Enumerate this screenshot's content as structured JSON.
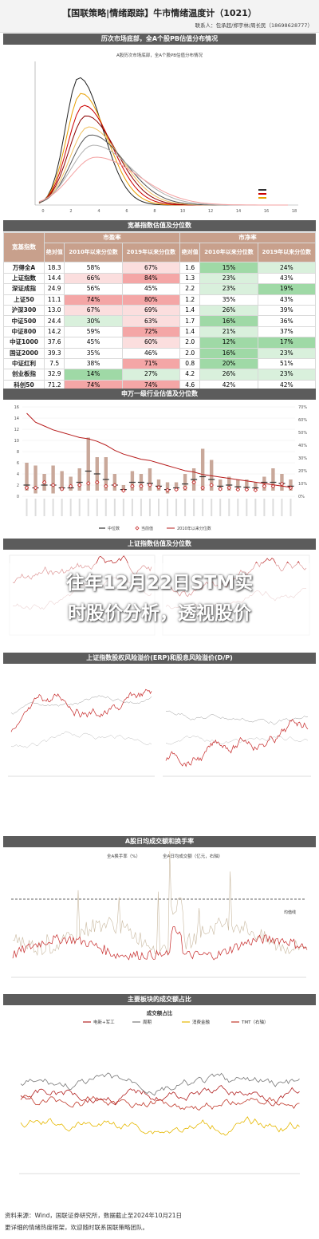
{
  "header": {
    "title": "【国联策略|情绪跟踪】牛市情绪温度计（1021）",
    "contact": "联系人：包承超/郑宇林/周长民（18698628777）"
  },
  "sections": {
    "pb": "历次市场底部，全A个股PB估值分布情况",
    "valuation_table": "宽基指数估值及分位数",
    "sw_industry": "申万一级行业估值及分位数",
    "sh_valuation": "上证指数估值及分位数",
    "erp": "上证指数股权风险溢价(ERP)和股息风险溢价(D/P)",
    "turnover": "A股日均成交额和换手率",
    "sector_share": "主要板块的成交额占比"
  },
  "pb_chart": {
    "subtitle": "A股历次市场底部，全A个股PB估值分布情况",
    "ticks": [
      "0",
      "2",
      "4",
      "6",
      "8",
      "10",
      "12",
      "14",
      "16",
      "18"
    ]
  },
  "table": {
    "corner": "宽基指数",
    "pe_group": "市盈率",
    "pb_group": "市净率",
    "sub_abs": "绝对值",
    "sub_2010": "2010年以来分位数",
    "sub_2019": "2019年以来分位数",
    "rows": [
      {
        "name": "万得全A",
        "pe": "18.3",
        "pe10": "58%",
        "pe19": "67%",
        "pb": "1.6",
        "pb10": "15%",
        "pb19": "24%"
      },
      {
        "name": "上证指数",
        "pe": "14.4",
        "pe10": "66%",
        "pe19": "84%",
        "pb": "1.3",
        "pb10": "23%",
        "pb19": "43%"
      },
      {
        "name": "深证成指",
        "pe": "24.9",
        "pe10": "56%",
        "pe19": "45%",
        "pb": "2.2",
        "pb10": "23%",
        "pb19": "19%"
      },
      {
        "name": "上证50",
        "pe": "11.1",
        "pe10": "74%",
        "pe19": "80%",
        "pb": "1.2",
        "pb10": "35%",
        "pb19": "43%"
      },
      {
        "name": "沪深300",
        "pe": "13.0",
        "pe10": "67%",
        "pe19": "69%",
        "pb": "1.4",
        "pb10": "26%",
        "pb19": "39%"
      },
      {
        "name": "中证500",
        "pe": "24.4",
        "pe10": "30%",
        "pe19": "63%",
        "pb": "1.7",
        "pb10": "16%",
        "pb19": "36%"
      },
      {
        "name": "中证800",
        "pe": "14.2",
        "pe10": "59%",
        "pe19": "72%",
        "pb": "1.4",
        "pb10": "21%",
        "pb19": "37%"
      },
      {
        "name": "中证1000",
        "pe": "37.6",
        "pe10": "45%",
        "pe19": "60%",
        "pb": "2.0",
        "pb10": "12%",
        "pb19": "17%"
      },
      {
        "name": "国证2000",
        "pe": "39.3",
        "pe10": "35%",
        "pe19": "46%",
        "pb": "2.0",
        "pb10": "16%",
        "pb19": "23%"
      },
      {
        "name": "中证红利",
        "pe": "7.5",
        "pe10": "38%",
        "pe19": "71%",
        "pb": "0.8",
        "pb10": "20%",
        "pb19": "51%"
      },
      {
        "name": "创业板指",
        "pe": "32.9",
        "pe10": "14%",
        "pe19": "27%",
        "pb": "4.2",
        "pb10": "26%",
        "pb19": "23%"
      },
      {
        "name": "科创50",
        "pe": "71.2",
        "pe10": "74%",
        "pe19": "74%",
        "pb": "4.6",
        "pb10": "42%",
        "pb19": "42%"
      }
    ]
  },
  "sw_chart": {
    "left_ticks": [
      "0",
      "2",
      "4",
      "6",
      "8",
      "10",
      "12",
      "14",
      "16"
    ],
    "right_ticks": [
      "0%",
      "10%",
      "20%",
      "30%",
      "40%",
      "50%",
      "60%",
      "70%"
    ],
    "bar_ranges": [
      [
        1,
        6
      ],
      [
        0.5,
        5.5
      ],
      [
        1,
        4
      ],
      [
        0.5,
        5.5
      ],
      [
        1,
        4.5
      ],
      [
        1,
        3.5
      ],
      [
        1,
        5
      ],
      [
        1,
        10.5
      ],
      [
        1,
        7
      ],
      [
        1,
        7
      ],
      [
        1,
        4
      ],
      [
        1,
        2
      ],
      [
        1,
        4.5
      ],
      [
        1,
        4
      ],
      [
        1,
        5
      ],
      [
        1,
        3
      ],
      [
        0.5,
        2.5
      ],
      [
        1,
        2.5
      ],
      [
        1,
        4
      ],
      [
        1,
        5
      ],
      [
        1,
        8.5
      ],
      [
        1,
        6.5
      ],
      [
        1,
        3
      ],
      [
        1,
        3.5
      ],
      [
        1,
        3
      ],
      [
        1,
        3
      ],
      [
        1,
        2.5
      ],
      [
        1,
        3.5
      ],
      [
        1,
        5
      ],
      [
        1,
        4
      ],
      [
        1,
        3
      ]
    ],
    "medians": [
      2,
      1.5,
      2,
      2,
      1.5,
      1.5,
      2.5,
      4.5,
      4,
      3,
      2,
      1.2,
      2.5,
      2.5,
      2.3,
      1.8,
      1.2,
      1.5,
      2.2,
      3,
      3.5,
      3,
      1.8,
      2,
      1.7,
      1.6,
      1.5,
      2.5,
      2.5,
      2.3,
      1.8
    ],
    "currents": [
      1.5,
      1.5,
      2.5,
      2,
      1.3,
      1.8,
      2,
      2.3,
      2.5,
      1.8,
      2,
      1,
      1.8,
      1.8,
      2,
      1.6,
      1.1,
      1.2,
      1.5,
      2.5,
      1.5,
      2,
      1.3,
      1.5,
      1.2,
      1.2,
      1.1,
      1.8,
      1.8,
      2.2,
      1.5
    ],
    "pe_line_pct": [
      65,
      58,
      55,
      52,
      50,
      48,
      46,
      45,
      43,
      40,
      36,
      33,
      31,
      29,
      28,
      26,
      24,
      22,
      20,
      19,
      17,
      16,
      15,
      14,
      13,
      12,
      11,
      10,
      9,
      8,
      7
    ]
  },
  "legend": {
    "median": "中位数",
    "current": "当前值",
    "pct": "2010年以来分位数"
  },
  "overlay": {
    "line1": "往年12月22日STM实",
    "line2": "时股价分析，透视股价"
  },
  "turnover": {
    "series_turnover": "全A换手率（%）",
    "series_amount": "全A日均成交额（亿元，右轴）",
    "annotation": "均值线"
  },
  "sector": {
    "subtitle": "成交额占比",
    "series": [
      "电新+军工",
      "周期",
      "消费金融",
      "TMT（右轴）"
    ],
    "colors": [
      "#b22222",
      "#777777",
      "#e6b800",
      "#c0392b"
    ]
  },
  "footer": {
    "source": "资料来源：Wind，国联证券研究所，数据截止至2024年10月21日",
    "note": "更详细的情绪热度框架，欢迎随时联系国联策略团队。"
  },
  "colors": {
    "band": "#5c5c5c",
    "red_cell": "#f4a6a6",
    "green_cell": "#9fd9a6",
    "light_red": "#fbdede",
    "light_green": "#d9f0dc",
    "bar": "#c9a89a",
    "line_red": "#b71c1c"
  }
}
